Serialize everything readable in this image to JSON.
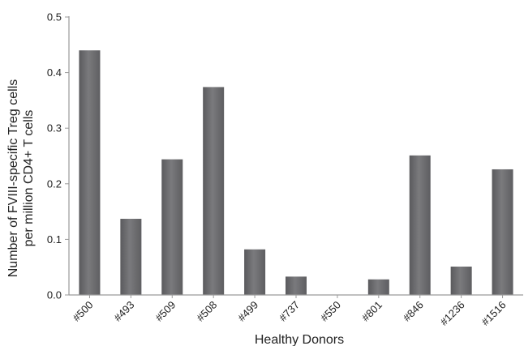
{
  "chart_data": {
    "type": "bar",
    "categories": [
      "#500",
      "#493",
      "#509",
      "#508",
      "#499",
      "#737",
      "#550",
      "#801",
      "#846",
      "#1236",
      "#1516"
    ],
    "values": [
      0.44,
      0.137,
      0.244,
      0.374,
      0.082,
      0.033,
      0.0,
      0.028,
      0.251,
      0.051,
      0.226
    ],
    "xlabel": "Healthy Donors",
    "ylabel_line1": "Number of FVIII-specific Treg cells",
    "ylabel_line2": "per million CD4+ T cells",
    "ylim": [
      0,
      0.5
    ],
    "yticks": [
      "0.0",
      "0.1",
      "0.2",
      "0.3",
      "0.4",
      "0.5"
    ],
    "grid": false,
    "bar_color": "#6f6f72",
    "axis_color": "#9a9a9a"
  }
}
